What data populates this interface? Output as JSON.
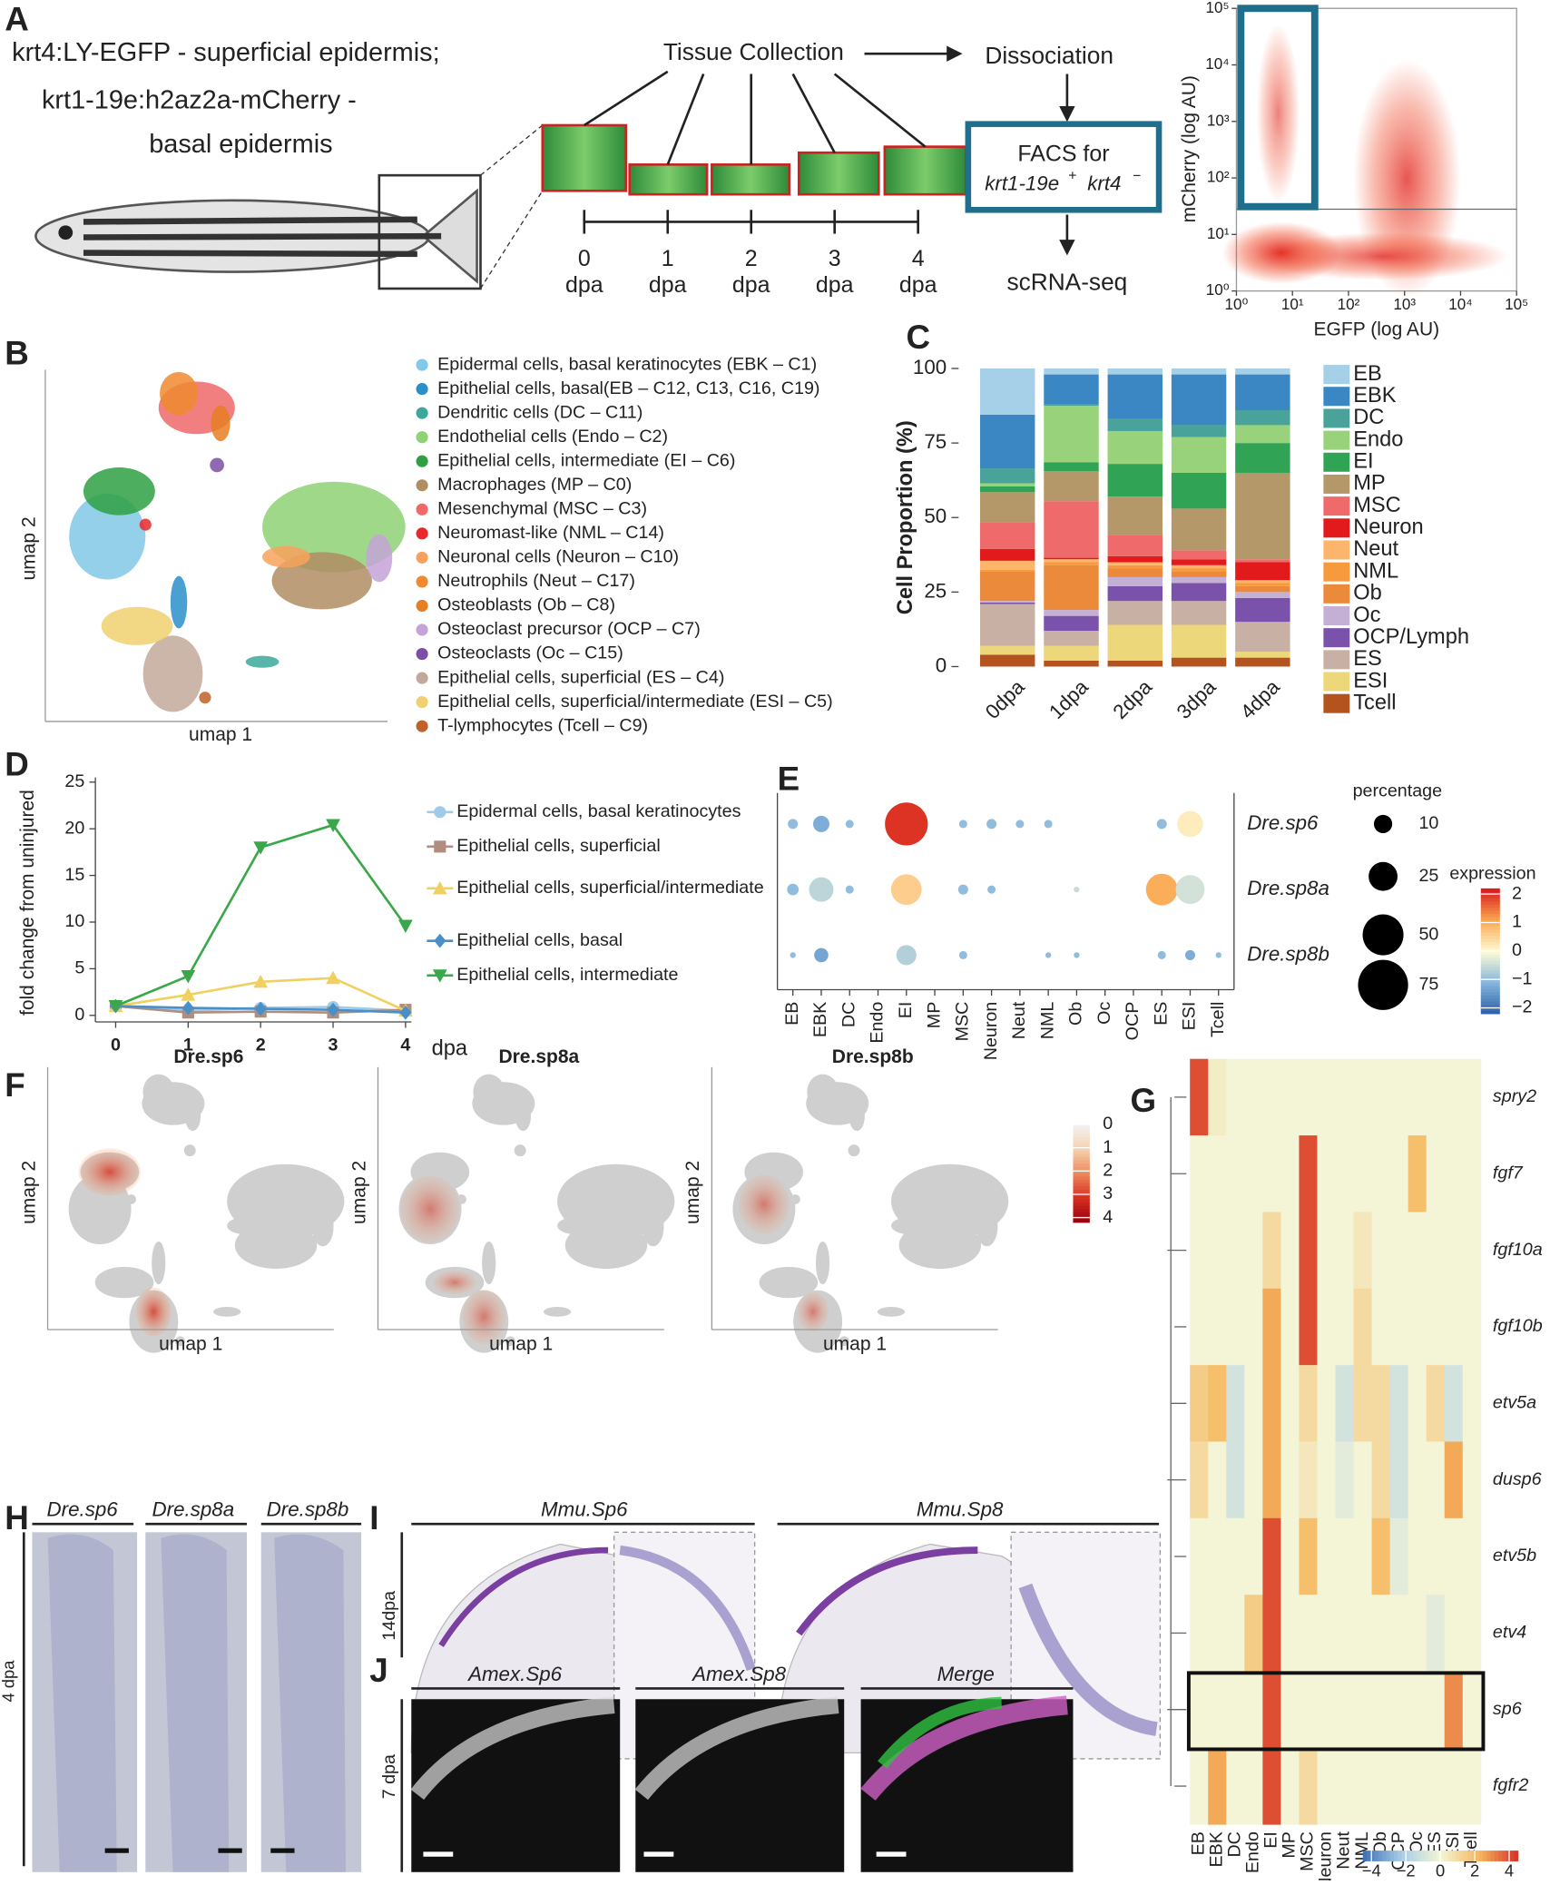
{
  "panel_labels": [
    "A",
    "B",
    "C",
    "D",
    "E",
    "F",
    "G",
    "H",
    "I",
    "J"
  ],
  "panel_a": {
    "legend_lines": [
      "krt4:LY-EGFP - superficial epidermis;",
      "krt1-19e:h2az2a-mCherry -",
      "basal epidermis"
    ],
    "collection": "Tissue Collection",
    "dissociation": "Dissociation",
    "facs": "FACS for",
    "facs_pos": "krt1-19e",
    "plus": "+",
    "facs_neg": "krt4",
    "minus": "−",
    "sequencing": "scRNA-seq",
    "timepoints": [
      "0",
      "1",
      "2",
      "3",
      "4"
    ],
    "timepoint_unit": "dpa"
  },
  "panel_b": {
    "xlabel": "umap 1",
    "ylabel": "umap 2",
    "clusters": [
      {
        "name": "Epidermal cells, basal keratinocytes (EBK – C1)",
        "color": "#82c8e8"
      },
      {
        "name": "Epithelial cells, basal(EB – C12, C13, C16, C19)",
        "color": "#2a8fc8"
      },
      {
        "name": "Dendritic cells (DC – C11)",
        "color": "#3aa89a"
      },
      {
        "name": "Endothelial cells (Endo – C2)",
        "color": "#8fd175"
      },
      {
        "name": "Epithelial cells, intermediate (EI – C6)",
        "color": "#2ea043"
      },
      {
        "name": "Macrophages (MP – C0)",
        "color": "#b08d63"
      },
      {
        "name": "Mesenchymal (MSC – C3)",
        "color": "#f06868"
      },
      {
        "name": "Neuromast-like (NML – C14)",
        "color": "#e8282b"
      },
      {
        "name": "Neuronal cells (Neuron – C10)",
        "color": "#f7a25c"
      },
      {
        "name": "Neutrophils (Neut – C17)",
        "color": "#f08a30"
      },
      {
        "name": "Osteoblasts (Ob – C8)",
        "color": "#e67e22"
      },
      {
        "name": "Osteoclast precursor (OCP – C7)",
        "color": "#c4a3d6"
      },
      {
        "name": "Osteoclasts (Oc – C15)",
        "color": "#7b4fa5"
      },
      {
        "name": "Epithelial cells, superficial (ES – C4)",
        "color": "#c3a89a"
      },
      {
        "name": "Epithelial cells, superficial/intermediate (ESI – C5)",
        "color": "#f0d070"
      },
      {
        "name": "T-lymphocytes (Tcell – C9)",
        "color": "#c0602a"
      }
    ]
  },
  "panel_f": {
    "titles": [
      "Dre.sp6",
      "Dre.sp8a",
      "Dre.sp8b"
    ],
    "xlabel": "umap 1",
    "ylabel": "umap 2",
    "colorbar": {
      "lim": [
        0,
        4.2
      ],
      "ticks": [
        0,
        1,
        2,
        3,
        4
      ],
      "colors": [
        "#f2f2f2",
        "#f6d3b0",
        "#ec8a5e",
        "#d7301f",
        "#99000d"
      ]
    }
  },
  "panel_h": {
    "headers": [
      "Dre.sp6",
      "Dre.sp8a",
      "Dre.sp8b"
    ],
    "side": "4 dpa"
  },
  "panel_i": {
    "headers": [
      "Mmu.Sp6",
      "Mmu.Sp8"
    ],
    "side": "14dpa"
  },
  "panel_j": {
    "headers": [
      "Amex.Sp6",
      "Amex.Sp8",
      "Merge"
    ],
    "side": "7 dpa"
  },
  "chart_data": [
    {
      "type": "flow-cytometry",
      "xlabel": "EGFP (log AU)",
      "ylabel": "mCherry (log AU)",
      "log_scale": true,
      "xlim": [
        1,
        100000
      ],
      "ylim": [
        1,
        100000
      ],
      "xticks": [
        {
          "value": 1,
          "label": "10⁰"
        },
        {
          "value": 10,
          "label": "10¹"
        },
        {
          "value": 100,
          "label": "10²"
        },
        {
          "value": 1000,
          "label": "10³"
        },
        {
          "value": 10000,
          "label": "10⁴"
        },
        {
          "value": 100000,
          "label": "10⁵"
        }
      ],
      "yticks": [
        {
          "value": 1,
          "label": "10⁰"
        },
        {
          "value": 10,
          "label": "10¹"
        },
        {
          "value": 100,
          "label": "10²"
        },
        {
          "value": 1000,
          "label": "10³"
        },
        {
          "value": 10000,
          "label": "10⁴"
        },
        {
          "value": 100000,
          "label": "10⁵"
        }
      ],
      "gate": {
        "color": "#1f6e8c",
        "x": [
          1.2,
          25
        ],
        "y": [
          31,
          100000
        ]
      },
      "threshold_y": 28
    },
    {
      "type": "stacked-bar",
      "ylabel": "Cell Proportion (%)",
      "categories": [
        "0dpa",
        "1dpa",
        "2dpa",
        "3dpa",
        "4dpa"
      ],
      "ylim": [
        0,
        100
      ],
      "yticks": [
        0,
        25,
        50,
        75,
        100
      ],
      "series": [
        {
          "name": "EB",
          "color": "#a6d0e8",
          "values": [
            15.5,
            2,
            2,
            2,
            2
          ]
        },
        {
          "name": "EBK",
          "color": "#3b87c4",
          "values": [
            18,
            10,
            15,
            17,
            12
          ]
        },
        {
          "name": "DC",
          "color": "#4aa39a",
          "values": [
            5,
            0.5,
            4,
            4,
            5
          ]
        },
        {
          "name": "Endo",
          "color": "#98d27a",
          "values": [
            1,
            19,
            11,
            12,
            6
          ]
        },
        {
          "name": "EI",
          "color": "#31a354",
          "values": [
            2,
            3,
            11,
            12,
            10
          ]
        },
        {
          "name": "MP",
          "color": "#b5986a",
          "values": [
            10,
            10,
            13,
            14,
            29
          ]
        },
        {
          "name": "MSC",
          "color": "#ef6b6b",
          "values": [
            9,
            19,
            7,
            3,
            1
          ]
        },
        {
          "name": "Neuron",
          "color": "#e31a1c",
          "values": [
            4,
            0.5,
            2,
            2,
            6
          ]
        },
        {
          "name": "Neut",
          "color": "#fdb46b",
          "values": [
            3,
            1,
            1,
            1,
            1
          ]
        },
        {
          "name": "NML",
          "color": "#f79a3e",
          "values": [
            0.5,
            1,
            1,
            1,
            1
          ]
        },
        {
          "name": "Ob",
          "color": "#ea8a3a",
          "values": [
            10,
            15,
            3,
            2,
            2
          ]
        },
        {
          "name": "Oc",
          "color": "#c5b0d5",
          "values": [
            0.5,
            2,
            3,
            2,
            2
          ]
        },
        {
          "name": "OCP/Lymph",
          "color": "#7b52ab",
          "values": [
            0.5,
            5,
            5,
            6,
            8
          ]
        },
        {
          "name": "ES",
          "color": "#c8b0a4",
          "values": [
            14,
            5,
            8,
            8,
            10
          ]
        },
        {
          "name": "ESI",
          "color": "#ecd77a",
          "values": [
            3,
            5,
            12,
            11,
            2
          ]
        },
        {
          "name": "Tcell",
          "color": "#b5531f",
          "values": [
            4,
            2,
            2,
            3,
            3
          ]
        }
      ]
    },
    {
      "type": "line",
      "xlabel": "dpa",
      "ylabel": "fold change from uninjured",
      "x": [
        0,
        1,
        2,
        3,
        4
      ],
      "xlim": [
        -0.28,
        4.08
      ],
      "xticks": [
        0,
        1,
        2,
        3,
        4
      ],
      "ylim": [
        -0.7,
        25.5
      ],
      "yticks": [
        0,
        5,
        10,
        15,
        20,
        25
      ],
      "series": [
        {
          "name": "Epidermal cells, basal keratinocytes",
          "color": "#9fcbe8",
          "marker": "circle",
          "values": [
            1,
            0.5,
            0.8,
            0.9,
            0.5
          ]
        },
        {
          "name": "Epithelial cells, superficial",
          "color": "#b08d7f",
          "marker": "square",
          "values": [
            1,
            0.3,
            0.4,
            0.3,
            0.6
          ]
        },
        {
          "name": "Epithelial cells, superficial/intermediate",
          "color": "#f0d060",
          "marker": "triangle-up",
          "values": [
            1,
            2.2,
            3.6,
            4,
            0.5
          ]
        },
        {
          "name": "Epithelial cells, basal",
          "color": "#4a90c8",
          "marker": "diamond",
          "values": [
            1,
            0.8,
            0.7,
            0.6,
            0.3
          ]
        },
        {
          "name": "Epithelial cells, intermediate",
          "color": "#3aa84a",
          "marker": "triangle-down",
          "values": [
            1,
            4.2,
            18,
            20.4,
            9.6
          ]
        }
      ]
    },
    {
      "type": "dot-plot",
      "categories": [
        "EB",
        "EBK",
        "DC",
        "Endo",
        "EI",
        "MP",
        "MSC",
        "Neuron",
        "Neut",
        "NML",
        "Ob",
        "Oc",
        "OCP",
        "ES",
        "ESI",
        "Tcell"
      ],
      "series": [
        {
          "name": "Dre.sp6",
          "percentage": [
            3,
            8,
            2,
            null,
            55,
            null,
            2,
            3,
            2,
            2,
            null,
            null,
            null,
            3,
            20,
            null
          ],
          "expression": [
            -1,
            -1.2,
            -1,
            null,
            2,
            null,
            -1,
            -1,
            -1,
            -1,
            null,
            null,
            null,
            -1,
            0.2,
            null
          ]
        },
        {
          "name": "Dre.sp8a",
          "percentage": [
            4,
            18,
            2,
            null,
            28,
            null,
            3,
            2,
            null,
            null,
            1,
            null,
            null,
            30,
            25,
            null
          ],
          "expression": [
            -1,
            -0.6,
            -1,
            null,
            0.6,
            null,
            -1,
            -1,
            null,
            null,
            -0.5,
            null,
            null,
            1,
            -0.4,
            null
          ]
        },
        {
          "name": "Dre.sp8b",
          "percentage": [
            1,
            6,
            null,
            null,
            12,
            null,
            2,
            null,
            null,
            1,
            1,
            null,
            null,
            2,
            3,
            1
          ],
          "expression": [
            -1,
            -1.3,
            null,
            null,
            -0.7,
            null,
            -1,
            null,
            null,
            -1,
            -1,
            null,
            null,
            -1,
            -1.2,
            -1
          ]
        }
      ],
      "size_title": "percentage",
      "size_ticks": [
        10,
        25,
        50,
        75
      ],
      "color_title": "expression",
      "color_lim": [
        -2.2,
        2.2
      ],
      "color_ticks": [
        2,
        1,
        0,
        {
          "value": -1,
          "label": "−1"
        },
        {
          "value": -2,
          "label": "−2"
        }
      ],
      "colors": [
        "#2b5fa8",
        "#86b6dc",
        "#fffbd6",
        "#f9a64e",
        "#d7191c"
      ]
    },
    {
      "type": "heatmap",
      "categories": [
        "EB",
        "EBK",
        "DC",
        "Endo",
        "EI",
        "MP",
        "MSC",
        "Neuron",
        "Neut",
        "NML",
        "Ob",
        "OCP",
        "Oc",
        "ES",
        "ESI",
        "Tcell"
      ],
      "rows": [
        {
          "name": "spry2",
          "values": [
            4,
            0.3,
            0,
            0,
            0,
            0,
            0,
            0,
            0,
            0,
            0,
            0,
            0,
            0,
            0,
            0
          ]
        },
        {
          "name": "fgf7",
          "values": [
            0,
            0,
            0,
            0,
            0,
            0,
            4,
            0,
            0,
            0,
            0,
            0,
            2,
            0,
            0,
            0
          ]
        },
        {
          "name": "fgf10a",
          "values": [
            0,
            0,
            0,
            0,
            1,
            0,
            4,
            0,
            0,
            0.5,
            0,
            0,
            0,
            0,
            0,
            0
          ]
        },
        {
          "name": "fgf10b",
          "values": [
            0,
            0,
            0,
            0,
            2.5,
            0,
            4,
            0,
            0,
            1,
            0,
            0,
            0,
            0,
            0,
            0
          ]
        },
        {
          "name": "etv5a",
          "values": [
            1.5,
            2,
            -1,
            0,
            2.5,
            0,
            1,
            0,
            -1,
            1,
            1,
            -1,
            0,
            1,
            -1,
            0
          ]
        },
        {
          "name": "dusp6",
          "values": [
            1,
            0,
            -1,
            0,
            2.5,
            0,
            0.5,
            0,
            -0.5,
            0,
            1,
            -1,
            0,
            0,
            2.5,
            0
          ]
        },
        {
          "name": "etv5b",
          "values": [
            0,
            0,
            0,
            0,
            4,
            0,
            2,
            0,
            0,
            0,
            2,
            -0.5,
            0,
            0,
            0,
            0
          ]
        },
        {
          "name": "etv4",
          "values": [
            0,
            0,
            0,
            1.5,
            4,
            0,
            0,
            0,
            0,
            0,
            0,
            0,
            0,
            -0.5,
            0,
            0
          ]
        },
        {
          "name": "sp6",
          "values": [
            0,
            0,
            0,
            0,
            4,
            0,
            0,
            0,
            0,
            0,
            0,
            0,
            0,
            0,
            3,
            0
          ]
        },
        {
          "name": "fgfr2",
          "values": [
            0,
            2.5,
            0,
            0,
            4,
            0,
            1,
            0,
            0,
            0,
            0,
            0,
            0,
            0,
            0,
            0
          ]
        }
      ],
      "color_lim": [
        -4.5,
        4.5
      ],
      "color_ticks": [
        {
          "value": -4,
          "label": "−4"
        },
        {
          "value": -2,
          "label": "−2"
        },
        0,
        2,
        4
      ],
      "colors": [
        "#3b6fb6",
        "#a9cde6",
        "#f3f5d6",
        "#f5b85e",
        "#d73027"
      ]
    }
  ]
}
